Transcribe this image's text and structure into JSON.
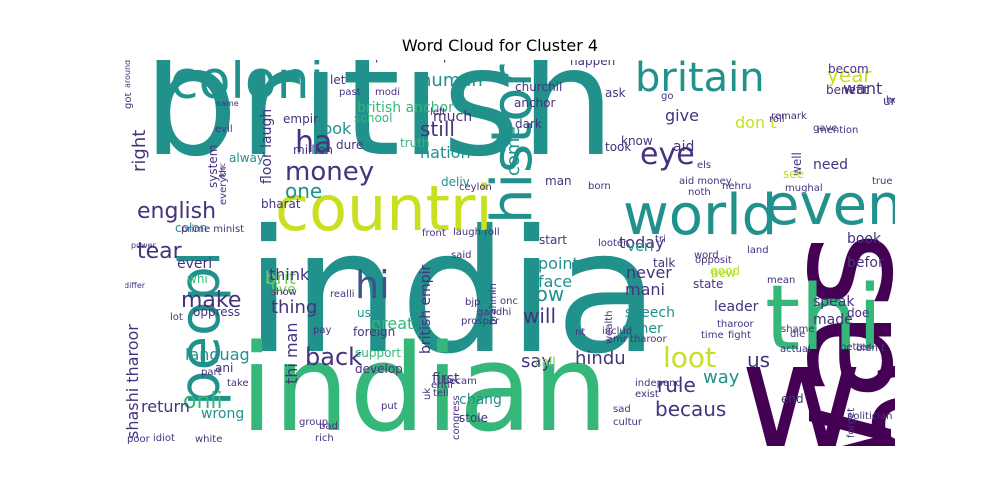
{
  "title": "Word Cloud for Cluster 4",
  "palette": {
    "teal": "#21918c",
    "blue": "#3b528b",
    "purple": "#440154",
    "indigo": "#46327e",
    "green": "#35b779",
    "lightgreen": "#6ece58",
    "lime": "#b5de2b",
    "yellow": "#c8e020",
    "sea": "#1f9e89",
    "gray": "#31688e"
  },
  "words": [
    {
      "text": "british",
      "color": "teal",
      "rot": 0
    },
    {
      "text": "india",
      "color": "teal",
      "rot": 0
    },
    {
      "text": "indian",
      "color": "green",
      "rot": 0
    },
    {
      "text": "wa",
      "color": "purple",
      "rot": 0
    },
    {
      "text": "was",
      "color": "purple",
      "rot": 90
    },
    {
      "text": "thi",
      "color": "green",
      "rot": 0
    },
    {
      "text": "countri",
      "color": "yellow",
      "rot": 0
    },
    {
      "text": "world",
      "color": "teal",
      "rot": 0
    },
    {
      "text": "even",
      "color": "teal",
      "rot": 0
    },
    {
      "text": "coloni",
      "color": "teal",
      "rot": 0
    },
    {
      "text": "britain",
      "color": "teal",
      "rot": 0
    },
    {
      "text": "peopl",
      "color": "teal",
      "rot": 90
    },
    {
      "text": "histori",
      "color": "teal",
      "rot": 90
    },
    {
      "text": "money",
      "color": "indigo",
      "rot": 0
    },
    {
      "text": "english",
      "color": "indigo",
      "rot": 0
    },
    {
      "text": "hi",
      "color": "blue",
      "rot": 0
    },
    {
      "text": "ha",
      "color": "indigo",
      "rot": 0
    },
    {
      "text": "eye",
      "color": "indigo",
      "rot": 0
    },
    {
      "text": "back",
      "color": "indigo",
      "rot": 0
    },
    {
      "text": "loot",
      "color": "yellow",
      "rot": 0
    },
    {
      "text": "tear",
      "color": "indigo",
      "rot": 0
    },
    {
      "text": "one",
      "color": "teal",
      "rot": 0
    },
    {
      "text": "make",
      "color": "indigo",
      "rot": 0
    },
    {
      "text": "now",
      "color": "teal",
      "rot": 0
    },
    {
      "text": "will",
      "color": "indigo",
      "rot": 0
    },
    {
      "text": "onli",
      "color": "green",
      "rot": 0
    },
    {
      "text": "becaus",
      "color": "indigo",
      "rot": 0
    },
    {
      "text": "rule",
      "color": "indigo",
      "rot": 0
    },
    {
      "text": "hindu",
      "color": "indigo",
      "rot": 0
    },
    {
      "text": "say",
      "color": "indigo",
      "rot": 0
    },
    {
      "text": "us",
      "color": "indigo",
      "rot": 0
    },
    {
      "text": "way",
      "color": "teal",
      "rot": 0
    },
    {
      "text": "brit",
      "color": "lightgreen",
      "rot": 0
    },
    {
      "text": "thing",
      "color": "indigo",
      "rot": 0
    },
    {
      "text": "human",
      "color": "teal",
      "rot": 0
    },
    {
      "text": "still",
      "color": "indigo",
      "rot": 0
    },
    {
      "text": "nation",
      "color": "teal",
      "rot": 0
    },
    {
      "text": "much",
      "color": "indigo",
      "rot": 0
    },
    {
      "text": "give",
      "color": "indigo",
      "rot": 0
    },
    {
      "text": "year",
      "color": "yellow",
      "rot": 0
    },
    {
      "text": "want",
      "color": "indigo",
      "rot": 0
    },
    {
      "text": "don t",
      "color": "yellow",
      "rot": 0
    },
    {
      "text": "need",
      "color": "indigo",
      "rot": 0
    },
    {
      "text": "book",
      "color": "indigo",
      "rot": 0
    },
    {
      "text": "befor",
      "color": "indigo",
      "rot": 0
    },
    {
      "text": "today",
      "color": "indigo",
      "rot": 0
    },
    {
      "text": "never",
      "color": "indigo",
      "rot": 0
    },
    {
      "text": "mani",
      "color": "indigo",
      "rot": 0
    },
    {
      "text": "point",
      "color": "teal",
      "rot": 0
    },
    {
      "text": "face",
      "color": "teal",
      "rot": 0
    },
    {
      "text": "look",
      "color": "teal",
      "rot": 0
    },
    {
      "text": "million",
      "color": "indigo",
      "rot": 0
    },
    {
      "text": "think",
      "color": "indigo",
      "rot": 0
    },
    {
      "text": "live",
      "color": "lightgreen",
      "rot": 0
    },
    {
      "text": "languag",
      "color": "teal",
      "rot": 0
    },
    {
      "text": "return",
      "color": "indigo",
      "rot": 0
    },
    {
      "text": "wrong",
      "color": "teal",
      "rot": 0
    },
    {
      "text": "great",
      "color": "green",
      "rot": 0
    },
    {
      "text": "speech",
      "color": "teal",
      "rot": 0
    },
    {
      "text": "gener",
      "color": "teal",
      "rot": 0
    },
    {
      "text": "made",
      "color": "indigo",
      "rot": 0
    },
    {
      "text": "speak",
      "color": "indigo",
      "rot": 0
    },
    {
      "text": "right",
      "color": "indigo",
      "rot": 90
    },
    {
      "text": "come",
      "color": "teal",
      "rot": 90
    },
    {
      "text": "parti",
      "color": "teal",
      "rot": 90
    },
    {
      "text": "shashi tharoor",
      "color": "indigo",
      "rot": 90
    },
    {
      "text": "thi man",
      "color": "indigo",
      "rot": 90
    },
    {
      "text": "british empir",
      "color": "indigo",
      "rot": 90
    },
    {
      "text": "well",
      "color": "indigo",
      "rot": 90
    },
    {
      "text": "muslim",
      "color": "indigo",
      "rot": 90
    },
    {
      "text": "floor laugh",
      "color": "indigo",
      "rot": 90
    },
    {
      "text": "deliv",
      "color": "teal",
      "rot": 0
    },
    {
      "text": "dark",
      "color": "indigo",
      "rot": 0
    },
    {
      "text": "man",
      "color": "indigo",
      "rot": 0
    },
    {
      "text": "took",
      "color": "indigo",
      "rot": 0
    },
    {
      "text": "aid",
      "color": "indigo",
      "rot": 0
    },
    {
      "text": "veri",
      "color": "teal",
      "rot": 0
    },
    {
      "text": "talk",
      "color": "indigo",
      "rot": 0
    },
    {
      "text": "call",
      "color": "lightgreen",
      "rot": 0
    },
    {
      "text": "use",
      "color": "teal",
      "rot": 0
    },
    {
      "text": "foreign",
      "color": "indigo",
      "rot": 0
    },
    {
      "text": "support",
      "color": "green",
      "rot": 0
    },
    {
      "text": "develop",
      "color": "indigo",
      "rot": 0
    },
    {
      "text": "ani",
      "color": "indigo",
      "rot": 0
    },
    {
      "text": "chang",
      "color": "teal",
      "rot": 0
    },
    {
      "text": "first",
      "color": "indigo",
      "rot": 0
    },
    {
      "text": "stole",
      "color": "indigo",
      "rot": 0
    },
    {
      "text": "colon",
      "color": "teal",
      "rot": 0
    },
    {
      "text": "everi",
      "color": "indigo",
      "rot": 0
    },
    {
      "text": "whi",
      "color": "green",
      "rot": 0
    },
    {
      "text": "oppress",
      "color": "indigo",
      "rot": 0
    },
    {
      "text": "alway",
      "color": "teal",
      "rot": 0
    },
    {
      "text": "dure",
      "color": "indigo",
      "rot": 0
    },
    {
      "text": "empir",
      "color": "indigo",
      "rot": 0
    },
    {
      "text": "british anchor",
      "color": "green",
      "rot": 0
    },
    {
      "text": "school",
      "color": "green",
      "rot": 0
    },
    {
      "text": "truth",
      "color": "green",
      "rot": 0
    },
    {
      "text": "happen",
      "color": "indigo",
      "rot": 0
    },
    {
      "text": "ask",
      "color": "indigo",
      "rot": 0
    },
    {
      "text": "know",
      "color": "indigo",
      "rot": 0
    },
    {
      "text": "churchil",
      "color": "indigo",
      "rot": 0
    },
    {
      "text": "anchor",
      "color": "indigo",
      "rot": 0
    },
    {
      "text": "leader",
      "color": "indigo",
      "rot": 0
    },
    {
      "text": "new",
      "color": "lime",
      "rot": 0
    },
    {
      "text": "good",
      "color": "lime",
      "rot": 0
    },
    {
      "text": "see",
      "color": "lime",
      "rot": 0
    },
    {
      "text": "mughal",
      "color": "indigo",
      "rot": 0
    },
    {
      "text": "mention",
      "color": "indigo",
      "rot": 0
    },
    {
      "text": "becom",
      "color": "indigo",
      "rot": 0
    },
    {
      "text": "understand",
      "color": "indigo",
      "rot": 0
    },
    {
      "text": "hear",
      "color": "indigo",
      "rot": 0
    },
    {
      "text": "benefit",
      "color": "indigo",
      "rot": 0
    },
    {
      "text": "roll",
      "color": "indigo",
      "rot": 0
    },
    {
      "text": "remark",
      "color": "indigo",
      "rot": 0
    },
    {
      "text": "gave",
      "color": "indigo",
      "rot": 0
    },
    {
      "text": "thi video",
      "color": "teal",
      "rot": 0
    },
    {
      "text": "respect",
      "color": "indigo",
      "rot": 0
    },
    {
      "text": "present",
      "color": "indigo",
      "rot": 0
    },
    {
      "text": "person",
      "color": "indigo",
      "rot": 0
    },
    {
      "text": "knowledg",
      "color": "indigo",
      "rot": 0
    },
    {
      "text": "let",
      "color": "indigo",
      "rot": 0
    },
    {
      "text": "past",
      "color": "indigo",
      "rot": 0
    },
    {
      "text": "modi",
      "color": "indigo",
      "rot": 0
    },
    {
      "text": "left",
      "color": "indigo",
      "rot": 0
    },
    {
      "text": "evil",
      "color": "indigo",
      "rot": 0
    },
    {
      "text": "name",
      "color": "indigo",
      "rot": 0
    },
    {
      "text": "system",
      "color": "indigo",
      "rot": 90
    },
    {
      "text": "got",
      "color": "indigo",
      "rot": 90
    },
    {
      "text": "everyth",
      "color": "indigo",
      "rot": 90
    },
    {
      "text": "forc",
      "color": "indigo",
      "rot": 90
    },
    {
      "text": "bharat",
      "color": "indigo",
      "rot": 0
    },
    {
      "text": "prime minist",
      "color": "indigo",
      "rot": 0
    },
    {
      "text": "power",
      "color": "indigo",
      "rot": 0
    },
    {
      "text": "front",
      "color": "indigo",
      "rot": 0
    },
    {
      "text": "laugh roll",
      "color": "indigo",
      "rot": 0
    },
    {
      "text": "said",
      "color": "indigo",
      "rot": 0
    },
    {
      "text": "ceylon",
      "color": "indigo",
      "rot": 0
    },
    {
      "text": "start",
      "color": "indigo",
      "rot": 0
    },
    {
      "text": "looter",
      "color": "indigo",
      "rot": 0
    },
    {
      "text": "tri",
      "color": "indigo",
      "rot": 0
    },
    {
      "text": "word",
      "color": "indigo",
      "rot": 0
    },
    {
      "text": "state",
      "color": "indigo",
      "rot": 0
    },
    {
      "text": "opposit",
      "color": "indigo",
      "rot": 0
    },
    {
      "text": "tharoor",
      "color": "indigo",
      "rot": 0
    },
    {
      "text": "fight",
      "color": "indigo",
      "rot": 0
    },
    {
      "text": "realli",
      "color": "indigo",
      "rot": 0
    },
    {
      "text": "show",
      "color": "indigo",
      "rot": 0
    },
    {
      "text": "differ",
      "color": "indigo",
      "rot": 0
    },
    {
      "text": "lot",
      "color": "indigo",
      "rot": 0
    },
    {
      "text": "pay",
      "color": "indigo",
      "rot": 0
    },
    {
      "text": "bjp",
      "color": "indigo",
      "rot": 0
    },
    {
      "text": "gandhi",
      "color": "indigo",
      "rot": 0
    },
    {
      "text": "includ",
      "color": "indigo",
      "rot": 0
    },
    {
      "text": "mr tharoor",
      "color": "indigo",
      "rot": 0
    },
    {
      "text": "time",
      "color": "indigo",
      "rot": 0
    },
    {
      "text": "independ",
      "color": "indigo",
      "rot": 0
    },
    {
      "text": "exist",
      "color": "indigo",
      "rot": 0
    },
    {
      "text": "forget",
      "color": "indigo",
      "rot": 90
    },
    {
      "text": "politician",
      "color": "indigo",
      "rot": 0
    },
    {
      "text": "end",
      "color": "indigo",
      "rot": 0
    },
    {
      "text": "sad",
      "color": "indigo",
      "rot": 0
    },
    {
      "text": "cultur",
      "color": "indigo",
      "rot": 0
    },
    {
      "text": "entir",
      "color": "indigo",
      "rot": 0
    },
    {
      "text": "becam",
      "color": "indigo",
      "rot": 0
    },
    {
      "text": "tell",
      "color": "indigo",
      "rot": 0
    },
    {
      "text": "put",
      "color": "indigo",
      "rot": 0
    },
    {
      "text": "group",
      "color": "indigo",
      "rot": 0
    },
    {
      "text": "bad",
      "color": "indigo",
      "rot": 0
    },
    {
      "text": "rich",
      "color": "indigo",
      "rot": 0
    },
    {
      "text": "poor",
      "color": "indigo",
      "rot": 0
    },
    {
      "text": "idiot",
      "color": "indigo",
      "rot": 0
    },
    {
      "text": "white",
      "color": "indigo",
      "rot": 0
    },
    {
      "text": "part",
      "color": "indigo",
      "rot": 0
    },
    {
      "text": "take",
      "color": "indigo",
      "rot": 0
    },
    {
      "text": "doe",
      "color": "indigo",
      "rot": 0
    },
    {
      "text": "better",
      "color": "indigo",
      "rot": 0
    },
    {
      "text": "shame",
      "color": "indigo",
      "rot": 0
    },
    {
      "text": "actual",
      "color": "indigo",
      "rot": 0
    },
    {
      "text": "didn t",
      "color": "indigo",
      "rot": 0
    },
    {
      "text": "die",
      "color": "indigo",
      "rot": 0
    },
    {
      "text": "mean",
      "color": "indigo",
      "rot": 0
    },
    {
      "text": "land",
      "color": "indigo",
      "rot": 0
    },
    {
      "text": "onc",
      "color": "indigo",
      "rot": 0
    },
    {
      "text": "nt",
      "color": "indigo",
      "rot": 0
    },
    {
      "text": "around",
      "color": "indigo",
      "rot": 90
    },
    {
      "text": "uk",
      "color": "indigo",
      "rot": 90
    },
    {
      "text": "congress",
      "color": "indigo",
      "rot": 90
    },
    {
      "text": "brahmin",
      "color": "indigo",
      "rot": 90
    },
    {
      "text": "prosper",
      "color": "indigo",
      "rot": 0
    },
    {
      "text": "wealth",
      "color": "indigo",
      "rot": 90
    },
    {
      "text": "true",
      "color": "indigo",
      "rot": 0
    },
    {
      "text": "born",
      "color": "indigo",
      "rot": 0
    },
    {
      "text": "noth",
      "color": "indigo",
      "rot": 0
    },
    {
      "text": "els",
      "color": "indigo",
      "rot": 0
    },
    {
      "text": "nehru",
      "color": "indigo",
      "rot": 0
    },
    {
      "text": "go",
      "color": "indigo",
      "rot": 0
    },
    {
      "text": "aid money",
      "color": "indigo",
      "rot": 0
    }
  ]
}
